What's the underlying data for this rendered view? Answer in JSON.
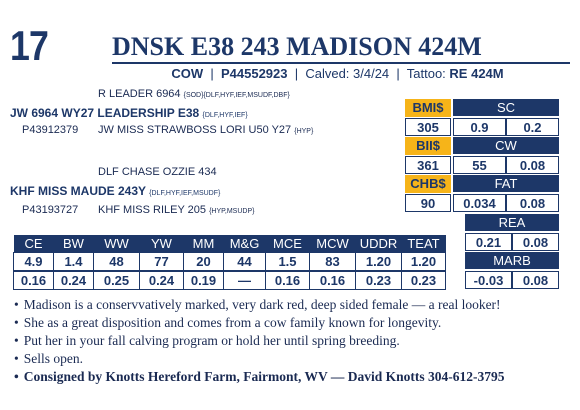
{
  "lot_number": "17",
  "animal_name": "DNSK E38 243 MADISON 424M",
  "info": {
    "sex": "COW",
    "registration": "P44552923",
    "calved": "Calved: 3/4/24",
    "tattoo_label": "Tattoo:",
    "tattoo_value": "RE 424M"
  },
  "pedigree": {
    "sire_sire": {
      "name": "R LEADER 6964",
      "codes": "{SOD}{DLF,HYF,IEF,MSUDF,DBF}"
    },
    "sire": {
      "name": "JW 6964 WY27 LEADERSHIP E38",
      "codes": "{DLF,HYF,IEF}"
    },
    "sire_reg": "P43912379",
    "sire_dam": {
      "name": "JW MISS STRAWBOSS LORI U50 Y27",
      "codes": "{HYP}"
    },
    "dam_sire": {
      "name": "DLF CHASE OZZIE 434",
      "codes": ""
    },
    "dam": {
      "name": "KHF MISS MAUDE 243Y",
      "codes": "{DLF,HYF,IEF,MSUDF}"
    },
    "dam_reg": "P43193727",
    "dam_dam": {
      "name": "KHF MISS RILEY 205",
      "codes": "{HYP,MSUDP}"
    }
  },
  "indexes": [
    {
      "label": "BMI$",
      "value": "305"
    },
    {
      "label": "BII$",
      "value": "361"
    },
    {
      "label": "CHB$",
      "value": "90"
    }
  ],
  "side_traits": [
    {
      "label": "SC",
      "epd": "0.9",
      "acc": "0.2"
    },
    {
      "label": "CW",
      "epd": "55",
      "acc": "0.08"
    },
    {
      "label": "FAT",
      "epd": "0.034",
      "acc": "0.08"
    },
    {
      "label": "REA",
      "epd": "0.21",
      "acc": "0.08"
    },
    {
      "label": "MARB",
      "epd": "-0.03",
      "acc": "0.08"
    }
  ],
  "epd_table": {
    "headers": [
      "CE",
      "BW",
      "WW",
      "YW",
      "MM",
      "M&G",
      "MCE",
      "MCW",
      "UDDR",
      "TEAT"
    ],
    "epds": [
      "4.9",
      "1.4",
      "48",
      "77",
      "20",
      "44",
      "1.5",
      "83",
      "1.20",
      "1.20"
    ],
    "accuracy": [
      "0.16",
      "0.24",
      "0.25",
      "0.24",
      "0.19",
      "—",
      "0.16",
      "0.16",
      "0.23",
      "0.23"
    ]
  },
  "notes": [
    "Madison is a conservvatively marked, very dark red, deep sided female — a real looker!",
    "She as a great disposition and comes from a cow family known for longevity.",
    "Put her in your fall calving program or hold her until spring breeding.",
    "Sells open."
  ],
  "consigner": "Consigned by Knotts Hereford Farm, Fairmont, WV — David Knotts 304-612-3795",
  "colors": {
    "navy": "#1d3768",
    "gold": "#f6b419"
  }
}
